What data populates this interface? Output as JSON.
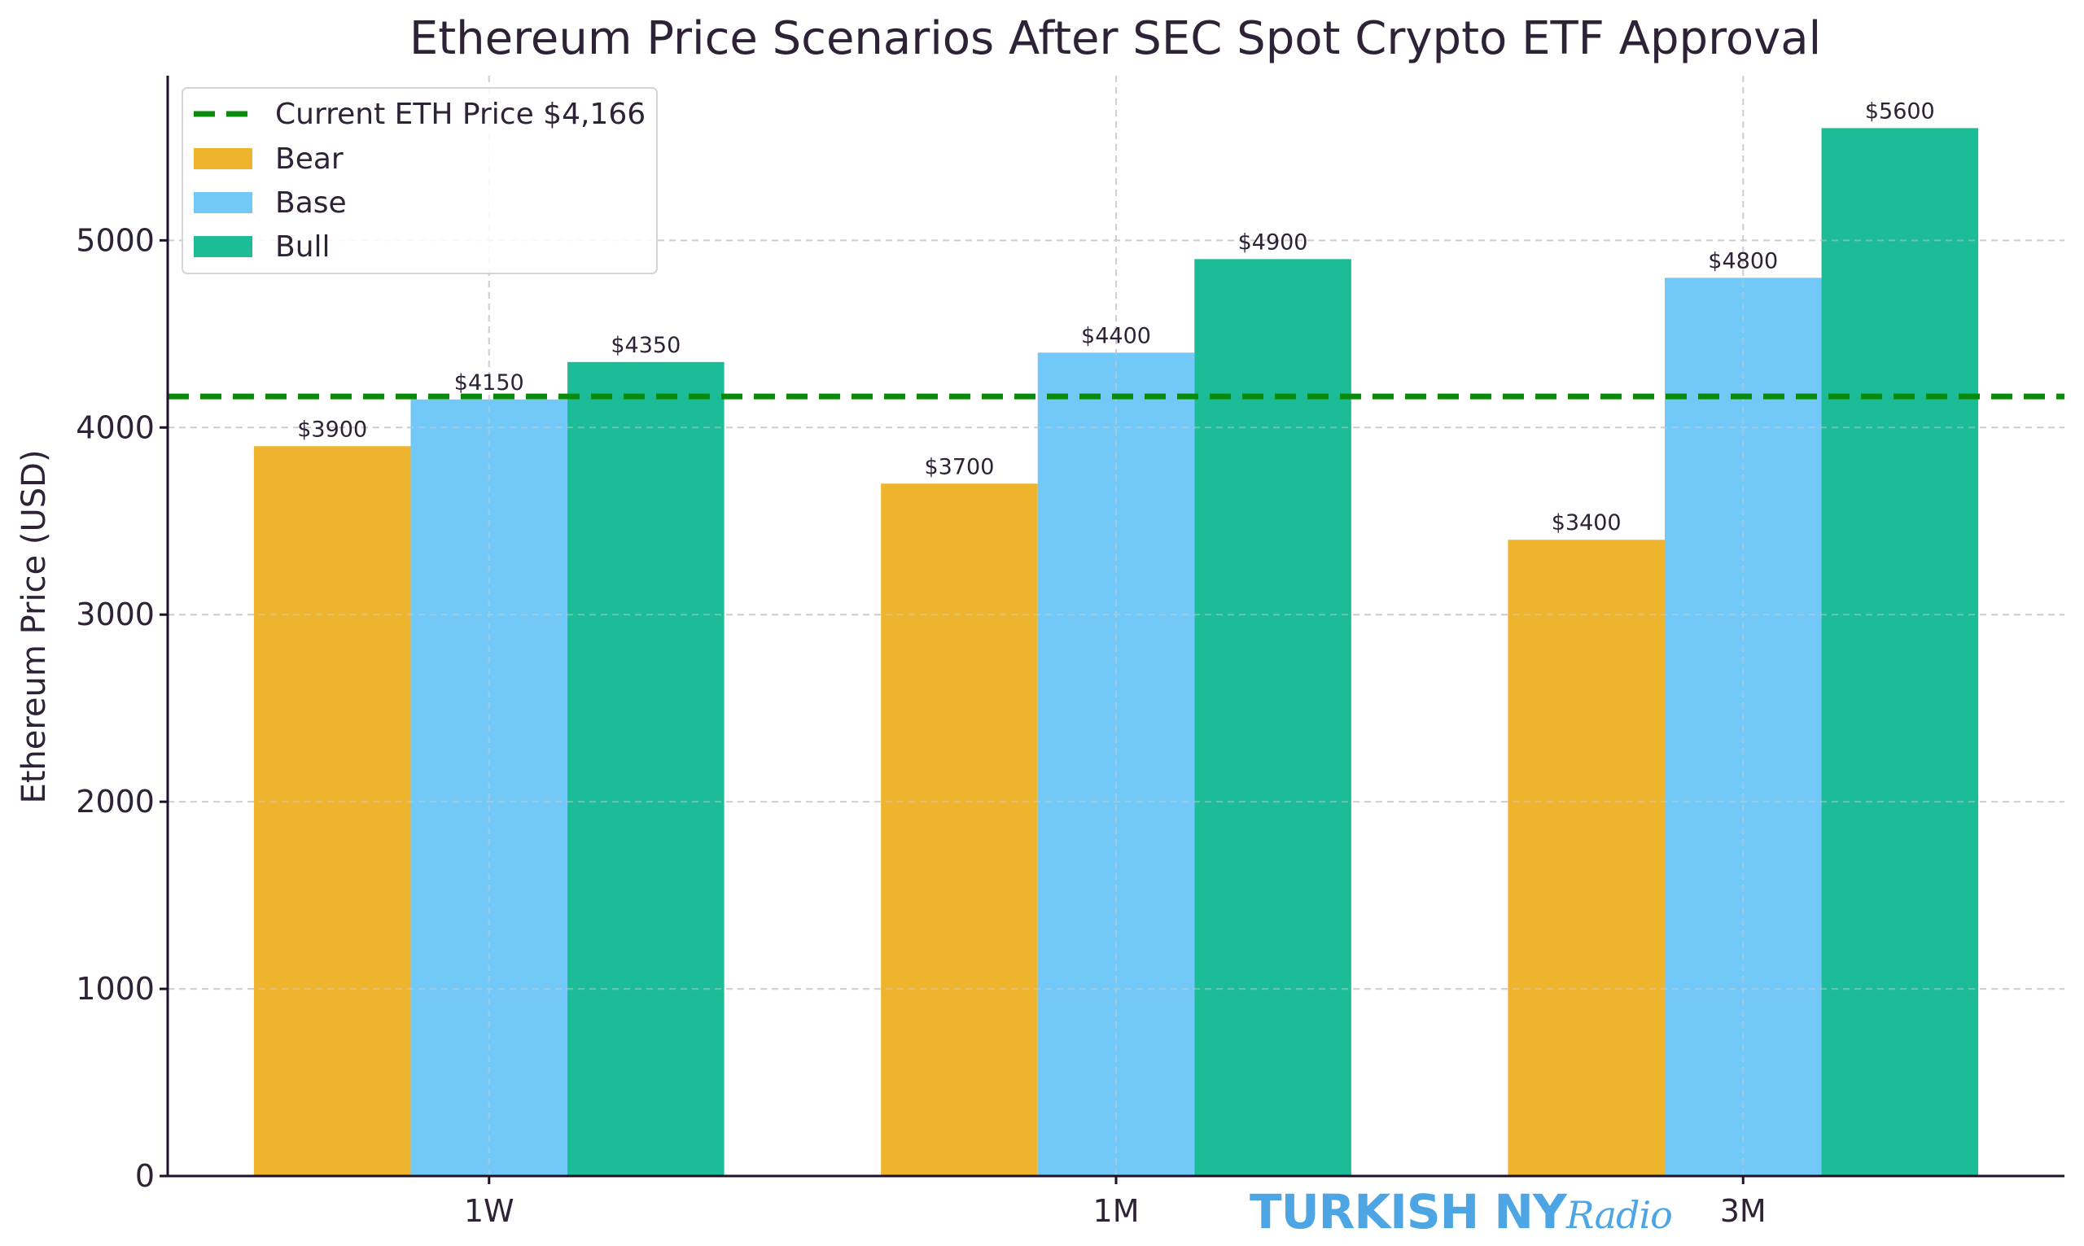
{
  "chart_data": {
    "type": "bar",
    "title": "Ethereum Price Scenarios After SEC Spot Crypto ETF Approval",
    "xlabel": "",
    "ylabel": "Ethereum Price (USD)",
    "categories": [
      "1W",
      "1M",
      "3M"
    ],
    "series": [
      {
        "name": "Bear",
        "values": [
          3900,
          3700,
          3400
        ],
        "color": "#efb42e",
        "labels": [
          "$3900",
          "$3700",
          "$3400"
        ]
      },
      {
        "name": "Base",
        "values": [
          4150,
          4400,
          4800
        ],
        "color": "#72c9f7",
        "labels": [
          "$4150",
          "$4400",
          "$4800"
        ]
      },
      {
        "name": "Bull",
        "values": [
          4350,
          4900,
          5600
        ],
        "color": "#1dbc98",
        "labels": [
          "$4350",
          "$4900",
          "$5600"
        ]
      }
    ],
    "reference_line": {
      "name": "Current ETH Price $4,166",
      "value": 4166,
      "color": "#0a8a0a",
      "style": "dashed"
    },
    "ylim": [
      0,
      5880
    ],
    "yticks": [
      0,
      1000,
      2000,
      3000,
      4000,
      5000
    ],
    "grid": true,
    "legend_position": "top-left"
  },
  "watermark": {
    "main": "TURKISH NY",
    "script": "Radio",
    "color": "#4da6e3"
  }
}
